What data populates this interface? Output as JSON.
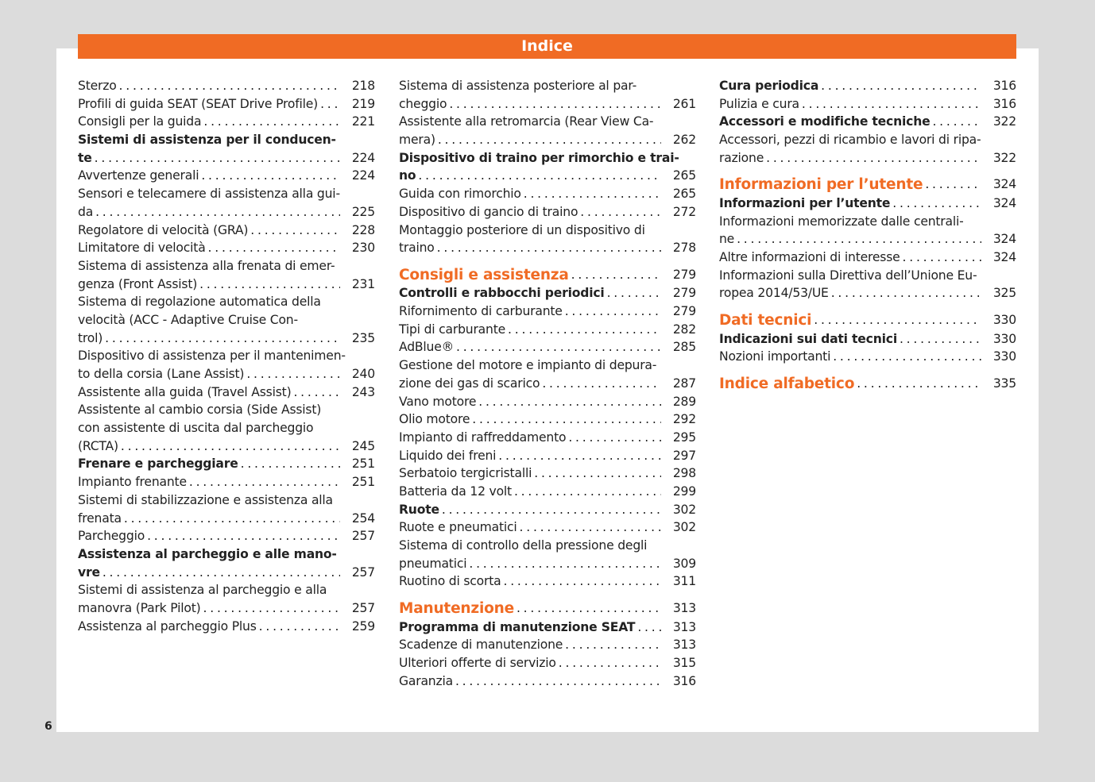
{
  "header": {
    "title": "Indice"
  },
  "page_number": "6",
  "colors": {
    "accent": "#f06b24",
    "background": "#dcdcdc"
  },
  "columns": [
    {
      "entries": [
        {
          "lines": [
            "Sterzo"
          ],
          "page": "218",
          "style": "normal"
        },
        {
          "lines": [
            "Profili di guida SEAT (SEAT Drive Profile)"
          ],
          "page": "219",
          "style": "normal"
        },
        {
          "lines": [
            "Consigli per la guida"
          ],
          "page": "221",
          "style": "normal"
        },
        {
          "lines": [
            "Sistemi di assistenza per il conducen-",
            "te"
          ],
          "page": "224",
          "style": "bold"
        },
        {
          "lines": [
            "Avvertenze generali"
          ],
          "page": "224",
          "style": "normal"
        },
        {
          "lines": [
            "Sensori e telecamere di assistenza alla gui-",
            "da"
          ],
          "page": "225",
          "style": "normal"
        },
        {
          "lines": [
            "Regolatore di velocità (GRA)"
          ],
          "page": "228",
          "style": "normal"
        },
        {
          "lines": [
            "Limitatore di velocità"
          ],
          "page": "230",
          "style": "normal"
        },
        {
          "lines": [
            "Sistema di assistenza alla frenata di emer-",
            "genza (Front Assist)"
          ],
          "page": "231",
          "style": "normal"
        },
        {
          "lines": [
            "Sistema di regolazione automatica della",
            "velocità (ACC - Adaptive Cruise Con-",
            "trol)"
          ],
          "page": "235",
          "style": "normal"
        },
        {
          "lines": [
            "Dispositivo di assistenza per il mantenimen-",
            "to della corsia (Lane Assist)"
          ],
          "page": "240",
          "style": "normal"
        },
        {
          "lines": [
            "Assistente alla guida (Travel Assist)"
          ],
          "page": "243",
          "style": "normal"
        },
        {
          "lines": [
            "Assistente al cambio corsia (Side Assist)",
            "con assistente di uscita dal parcheggio",
            "(RCTA)"
          ],
          "page": "245",
          "style": "normal"
        },
        {
          "lines": [
            "Frenare e parcheggiare"
          ],
          "page": "251",
          "style": "bold"
        },
        {
          "lines": [
            "Impianto frenante"
          ],
          "page": "251",
          "style": "normal"
        },
        {
          "lines": [
            "Sistemi di stabilizzazione e assistenza alla",
            "frenata"
          ],
          "page": "254",
          "style": "normal"
        },
        {
          "lines": [
            "Parcheggio"
          ],
          "page": "257",
          "style": "normal"
        },
        {
          "lines": [
            "Assistenza al parcheggio e alle mano-",
            "vre"
          ],
          "page": "257",
          "style": "bold"
        },
        {
          "lines": [
            "Sistemi di assistenza al parcheggio e alla",
            "manovra (Park Pilot)"
          ],
          "page": "257",
          "style": "normal"
        },
        {
          "lines": [
            "Assistenza al parcheggio Plus"
          ],
          "page": "259",
          "style": "normal"
        }
      ]
    },
    {
      "entries": [
        {
          "lines": [
            "Sistema di assistenza posteriore al par-",
            "cheggio"
          ],
          "page": "261",
          "style": "normal"
        },
        {
          "lines": [
            "Assistente alla retromarcia (Rear View Ca-",
            "mera)"
          ],
          "page": "262",
          "style": "normal"
        },
        {
          "lines": [
            "Dispositivo di traino per rimorchio e trai-",
            "no"
          ],
          "page": "265",
          "style": "bold"
        },
        {
          "lines": [
            "Guida con rimorchio"
          ],
          "page": "265",
          "style": "normal"
        },
        {
          "lines": [
            "Dispositivo di gancio di traino"
          ],
          "page": "272",
          "style": "normal"
        },
        {
          "lines": [
            "Montaggio posteriore di un dispositivo di",
            "traino"
          ],
          "page": "278",
          "style": "normal"
        },
        {
          "lines": [
            "Consigli e assistenza"
          ],
          "page": "279",
          "style": "section"
        },
        {
          "lines": [
            "Controlli e rabbocchi periodici"
          ],
          "page": "279",
          "style": "bold"
        },
        {
          "lines": [
            "Rifornimento di carburante"
          ],
          "page": "279",
          "style": "normal"
        },
        {
          "lines": [
            "Tipi di carburante"
          ],
          "page": "282",
          "style": "normal"
        },
        {
          "lines": [
            "AdBlue®"
          ],
          "page": "285",
          "style": "normal"
        },
        {
          "lines": [
            "Gestione del motore e impianto di depura-",
            "zione dei gas di scarico"
          ],
          "page": "287",
          "style": "normal"
        },
        {
          "lines": [
            "Vano motore"
          ],
          "page": "289",
          "style": "normal"
        },
        {
          "lines": [
            "Olio motore"
          ],
          "page": "292",
          "style": "normal"
        },
        {
          "lines": [
            "Impianto di raffreddamento"
          ],
          "page": "295",
          "style": "normal"
        },
        {
          "lines": [
            "Liquido dei freni"
          ],
          "page": "297",
          "style": "normal"
        },
        {
          "lines": [
            "Serbatoio tergicristalli"
          ],
          "page": "298",
          "style": "normal"
        },
        {
          "lines": [
            "Batteria da 12 volt"
          ],
          "page": "299",
          "style": "normal"
        },
        {
          "lines": [
            "Ruote"
          ],
          "page": "302",
          "style": "bold"
        },
        {
          "lines": [
            "Ruote e pneumatici"
          ],
          "page": "302",
          "style": "normal"
        },
        {
          "lines": [
            "Sistema di controllo della pressione degli",
            "pneumatici"
          ],
          "page": "309",
          "style": "normal"
        },
        {
          "lines": [
            "Ruotino di scorta"
          ],
          "page": "311",
          "style": "normal"
        },
        {
          "lines": [
            "Manutenzione"
          ],
          "page": "313",
          "style": "section"
        },
        {
          "lines": [
            "Programma di manutenzione SEAT"
          ],
          "page": "313",
          "style": "bold"
        },
        {
          "lines": [
            "Scadenze di manutenzione"
          ],
          "page": "313",
          "style": "normal"
        },
        {
          "lines": [
            "Ulteriori offerte di servizio"
          ],
          "page": "315",
          "style": "normal"
        },
        {
          "lines": [
            "Garanzia"
          ],
          "page": "316",
          "style": "normal"
        }
      ]
    },
    {
      "entries": [
        {
          "lines": [
            "Cura periodica"
          ],
          "page": "316",
          "style": "bold"
        },
        {
          "lines": [
            "Pulizia e cura"
          ],
          "page": "316",
          "style": "normal"
        },
        {
          "lines": [
            "Accessori e modifiche tecniche"
          ],
          "page": "322",
          "style": "bold"
        },
        {
          "lines": [
            "Accessori, pezzi di ricambio e lavori di ripa-",
            "razione"
          ],
          "page": "322",
          "style": "normal"
        },
        {
          "lines": [
            "Informazioni per l’utente"
          ],
          "page": "324",
          "style": "section"
        },
        {
          "lines": [
            "Informazioni per l’utente"
          ],
          "page": "324",
          "style": "bold"
        },
        {
          "lines": [
            "Informazioni memorizzate dalle centrali-",
            "ne"
          ],
          "page": "324",
          "style": "normal"
        },
        {
          "lines": [
            "Altre informazioni di interesse"
          ],
          "page": "324",
          "style": "normal"
        },
        {
          "lines": [
            "Informazioni sulla Direttiva dell’Unione Eu-",
            "ropea 2014/53/UE"
          ],
          "page": "325",
          "style": "normal"
        },
        {
          "lines": [
            "Dati tecnici"
          ],
          "page": "330",
          "style": "section"
        },
        {
          "lines": [
            "Indicazioni sui dati tecnici"
          ],
          "page": "330",
          "style": "bold"
        },
        {
          "lines": [
            "Nozioni importanti"
          ],
          "page": "330",
          "style": "normal"
        },
        {
          "lines": [
            "Indice alfabetico"
          ],
          "page": "335",
          "style": "section"
        }
      ]
    }
  ]
}
